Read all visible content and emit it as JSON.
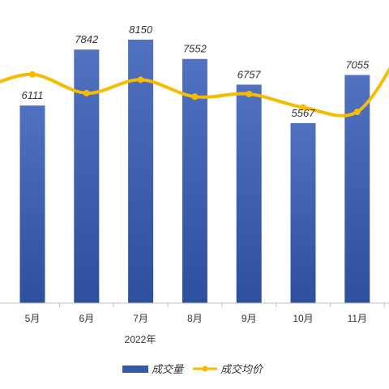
{
  "chart_data": {
    "type": "bar",
    "categories": [
      "5月",
      "6月",
      "7月",
      "8月",
      "9月",
      "10月",
      "11月"
    ],
    "group_label": "2022年",
    "series": [
      {
        "name": "成交量",
        "type": "bar",
        "values": [
          6111,
          7842,
          8150,
          7552,
          6757,
          5567,
          7055
        ],
        "color": "#3558A8"
      },
      {
        "name": "成交均价",
        "type": "line",
        "values": [
          7620,
          7410,
          7560,
          7370,
          7400,
          7250,
          7200
        ],
        "color": "#F5BC00"
      }
    ],
    "ylim": [
      0,
      9200
    ],
    "data_labels": [
      "6111",
      "7842",
      "8150",
      "7552",
      "6757",
      "5567",
      "7055"
    ],
    "legend_position": "bottom",
    "grid": false
  }
}
